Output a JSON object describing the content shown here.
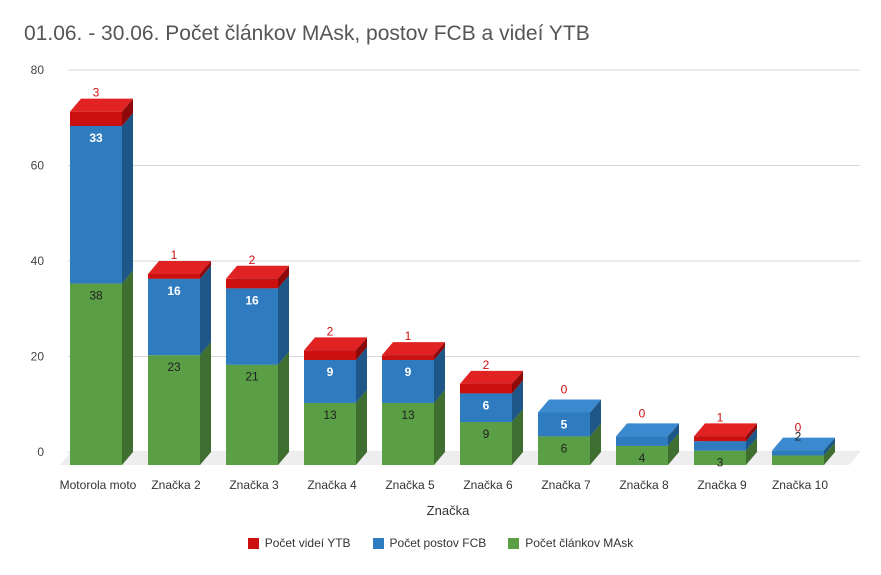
{
  "chart_data": {
    "type": "bar",
    "stacked": true,
    "style": "3d",
    "title": "01.06. - 30.06. Počet článkov MAsk, postov FCB a videí YTB",
    "xlabel": "Značka",
    "ylabel": "",
    "ylim": [
      0,
      80
    ],
    "yticks": [
      0,
      20,
      40,
      60,
      80
    ],
    "grid": true,
    "legend_position": "bottom",
    "categories": [
      "Motorola moto",
      "Značka 2",
      "Značka 3",
      "Značka 4",
      "Značka 5",
      "Značka 6",
      "Značka 7",
      "Značka 8",
      "Značka 9",
      "Značka 10"
    ],
    "series": [
      {
        "name": "Počet článkov MAsk",
        "color": "#5a9e45",
        "side_color": "#3e6e30",
        "top_color": "#6fb457",
        "label_color": "#222222",
        "values": [
          38,
          23,
          21,
          13,
          13,
          9,
          6,
          4,
          3,
          2
        ]
      },
      {
        "name": "Počet postov FCB",
        "color": "#2f7bbf",
        "side_color": "#1f5688",
        "top_color": "#3b8ad0",
        "label_color": "#ffffff",
        "values": [
          33,
          16,
          16,
          9,
          9,
          6,
          5,
          2,
          2,
          1
        ]
      },
      {
        "name": "Počet videí YTB",
        "color": "#cc1010",
        "side_color": "#8e0a0a",
        "top_color": "#e02222",
        "label_color": "#cc1010",
        "values": [
          3,
          1,
          2,
          2,
          1,
          2,
          0,
          0,
          1,
          0
        ]
      }
    ],
    "legend_order": [
      2,
      1,
      0
    ]
  }
}
